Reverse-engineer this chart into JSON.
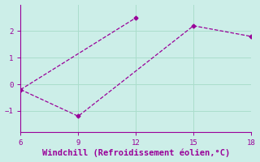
{
  "xlabel": "Windchill (Refroidissement éolien,°C)",
  "background_color": "#cceee8",
  "line_color": "#990099",
  "line1_x": [
    6,
    12
  ],
  "line1_y": [
    -0.2,
    2.5
  ],
  "line2_x": [
    6,
    9,
    15,
    18
  ],
  "line2_y": [
    -0.2,
    -1.2,
    2.2,
    1.8
  ],
  "xlim": [
    6,
    18
  ],
  "ylim": [
    -1.8,
    3.0
  ],
  "xticks": [
    6,
    9,
    12,
    15,
    18
  ],
  "yticks": [
    -1,
    0,
    1,
    2
  ],
  "grid_color": "#aaddcc",
  "marker": "D",
  "markersize": 2.5,
  "linewidth": 0.9,
  "xlabel_fontsize": 7.5,
  "tick_fontsize": 6.5
}
